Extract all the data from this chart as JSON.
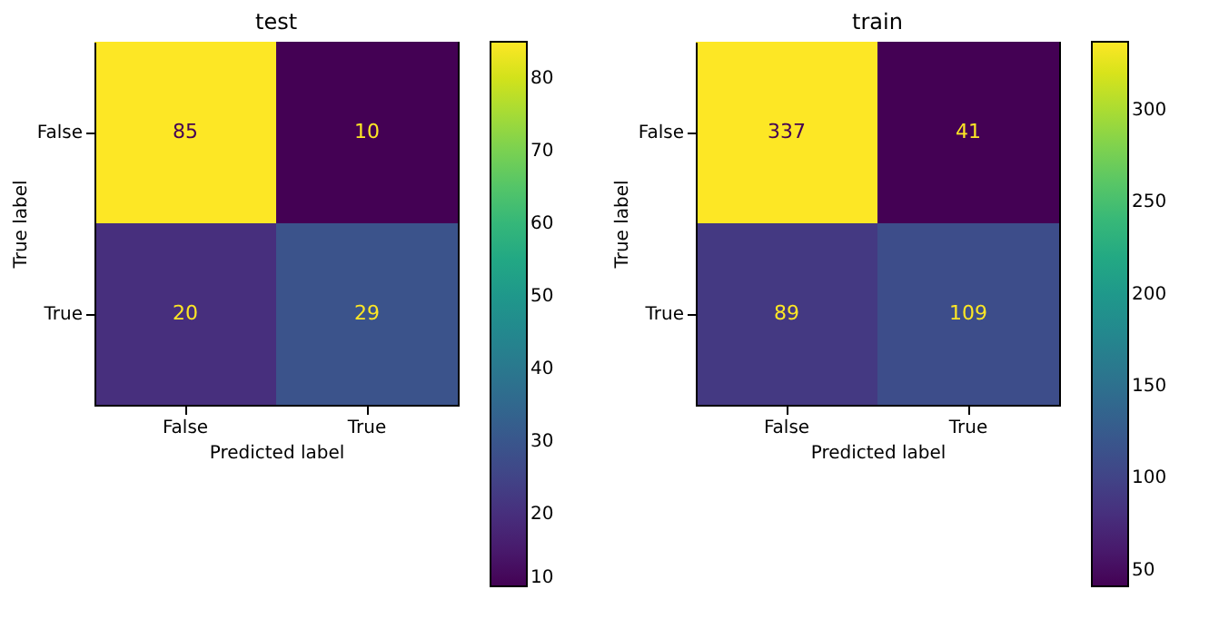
{
  "chart_data": [
    {
      "type": "heatmap",
      "title": "test",
      "xlabel": "Predicted label",
      "ylabel": "True label",
      "categories": [
        "False",
        "True"
      ],
      "y_categories": [
        "False",
        "True"
      ],
      "cells": [
        [
          85,
          10
        ],
        [
          20,
          29
        ]
      ],
      "clim": [
        10,
        85
      ],
      "cticks": [
        10,
        20,
        30,
        40,
        50,
        60,
        70,
        80
      ],
      "data_labels": true
    },
    {
      "type": "heatmap",
      "title": "train",
      "xlabel": "Predicted label",
      "ylabel": "True label",
      "categories": [
        "False",
        "True"
      ],
      "y_categories": [
        "False",
        "True"
      ],
      "cells": [
        [
          337,
          41
        ],
        [
          89,
          109
        ]
      ],
      "clim": [
        41,
        337
      ],
      "cticks": [
        50,
        100,
        150,
        200,
        250,
        300
      ],
      "data_labels": true
    }
  ]
}
